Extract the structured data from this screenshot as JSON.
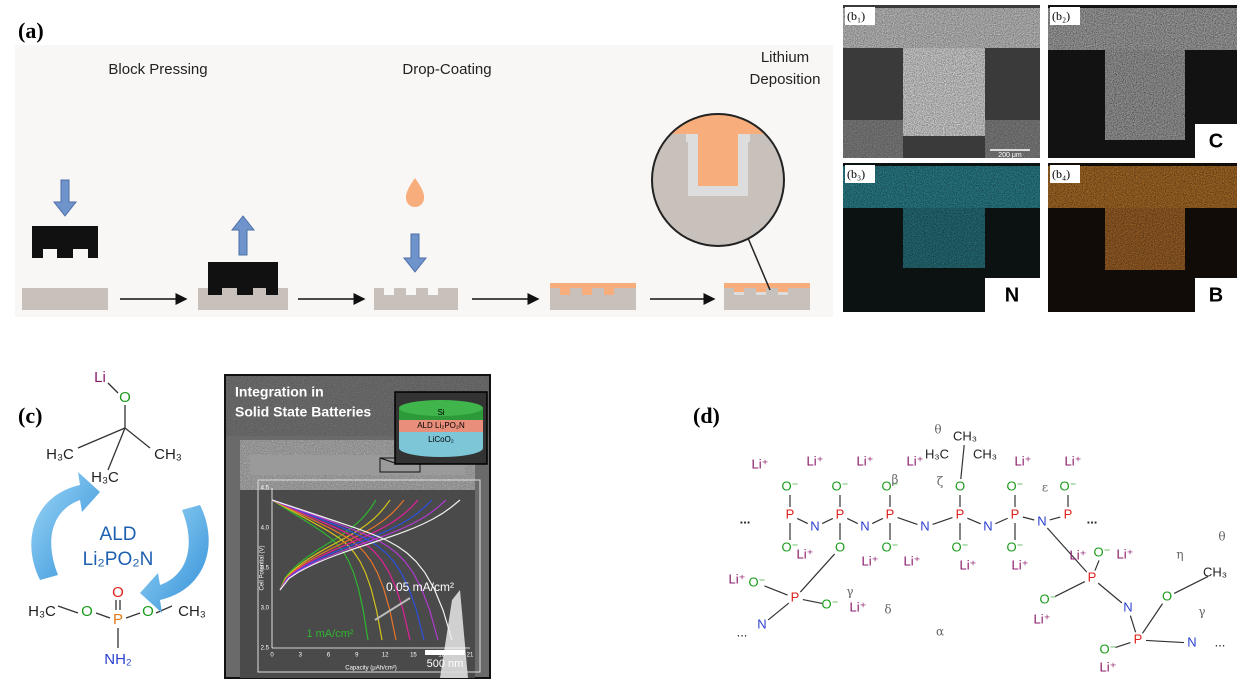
{
  "panel_a": {
    "label": "(a)",
    "step_labels": [
      "Block Pressing",
      "Drop-Coating",
      "Lithium",
      "Deposition"
    ]
  },
  "panel_b": {
    "labels": [
      "(b₁)",
      "(b₂)",
      "(b₃)",
      "(b₄)"
    ],
    "elements": [
      "C",
      "N",
      "B"
    ],
    "scale_bar": "200 μm"
  },
  "panel_c": {
    "label": "(c)",
    "molecule_texts": [
      "Li",
      "O",
      "H₃C",
      "CH₃",
      "H₃C",
      "O",
      "H₃C",
      "O",
      "P",
      "O",
      "CH₃",
      "NH₂"
    ],
    "cycle_label": [
      "ALD",
      "Li₂PO₂N"
    ],
    "sem": {
      "title": [
        "Integration in",
        "Solid State Batteries"
      ],
      "layers": [
        "Si",
        "ALD Li₂PO₂N",
        "LiCoO₂"
      ],
      "scale_bar": "500 nm",
      "inset": {
        "y_title": "Cell Potential (V)",
        "x_title": "Capacity (μAh/cm²)",
        "yticks": [
          "2.5",
          "3.0",
          "3.5",
          "4.0",
          "4.5"
        ],
        "xticks": [
          "0",
          "3",
          "6",
          "9",
          "12",
          "15",
          "18",
          "21"
        ],
        "annotations": [
          "0.05 mA/cm²",
          "1 mA/cm²"
        ]
      }
    }
  },
  "panel_d": {
    "label": "(d)",
    "texts": [
      "...",
      "P",
      "N",
      "P",
      "N",
      "P",
      "N",
      "P",
      "N",
      "P",
      "N",
      "P",
      "...",
      "O⁻",
      "O⁻",
      "O⁻",
      "O",
      "O⁻",
      "O⁻",
      "Li⁺",
      "Li⁺",
      "Li⁺",
      "Li⁺",
      "Li⁺",
      "Li⁺",
      "CH₃",
      "H₃C",
      "CH₃",
      "O⁻",
      "O",
      "O⁻",
      "O⁻",
      "O⁻",
      "Li⁺",
      "Li⁺",
      "Li⁺",
      "Li⁺",
      "Li⁺",
      "P",
      "O⁻",
      "Li⁺",
      "O⁻",
      "Li⁺",
      "N",
      "...",
      "P",
      "O⁻",
      "Li⁺",
      "Li⁺",
      "O⁻",
      "Li⁺",
      "N",
      "O",
      "CH₃",
      "P",
      "O⁻",
      "Li⁺",
      "N",
      "...",
      "θ",
      "β",
      "ζ",
      "ε",
      "γ",
      "δ",
      "α",
      "η",
      "θ",
      "γ"
    ]
  }
}
